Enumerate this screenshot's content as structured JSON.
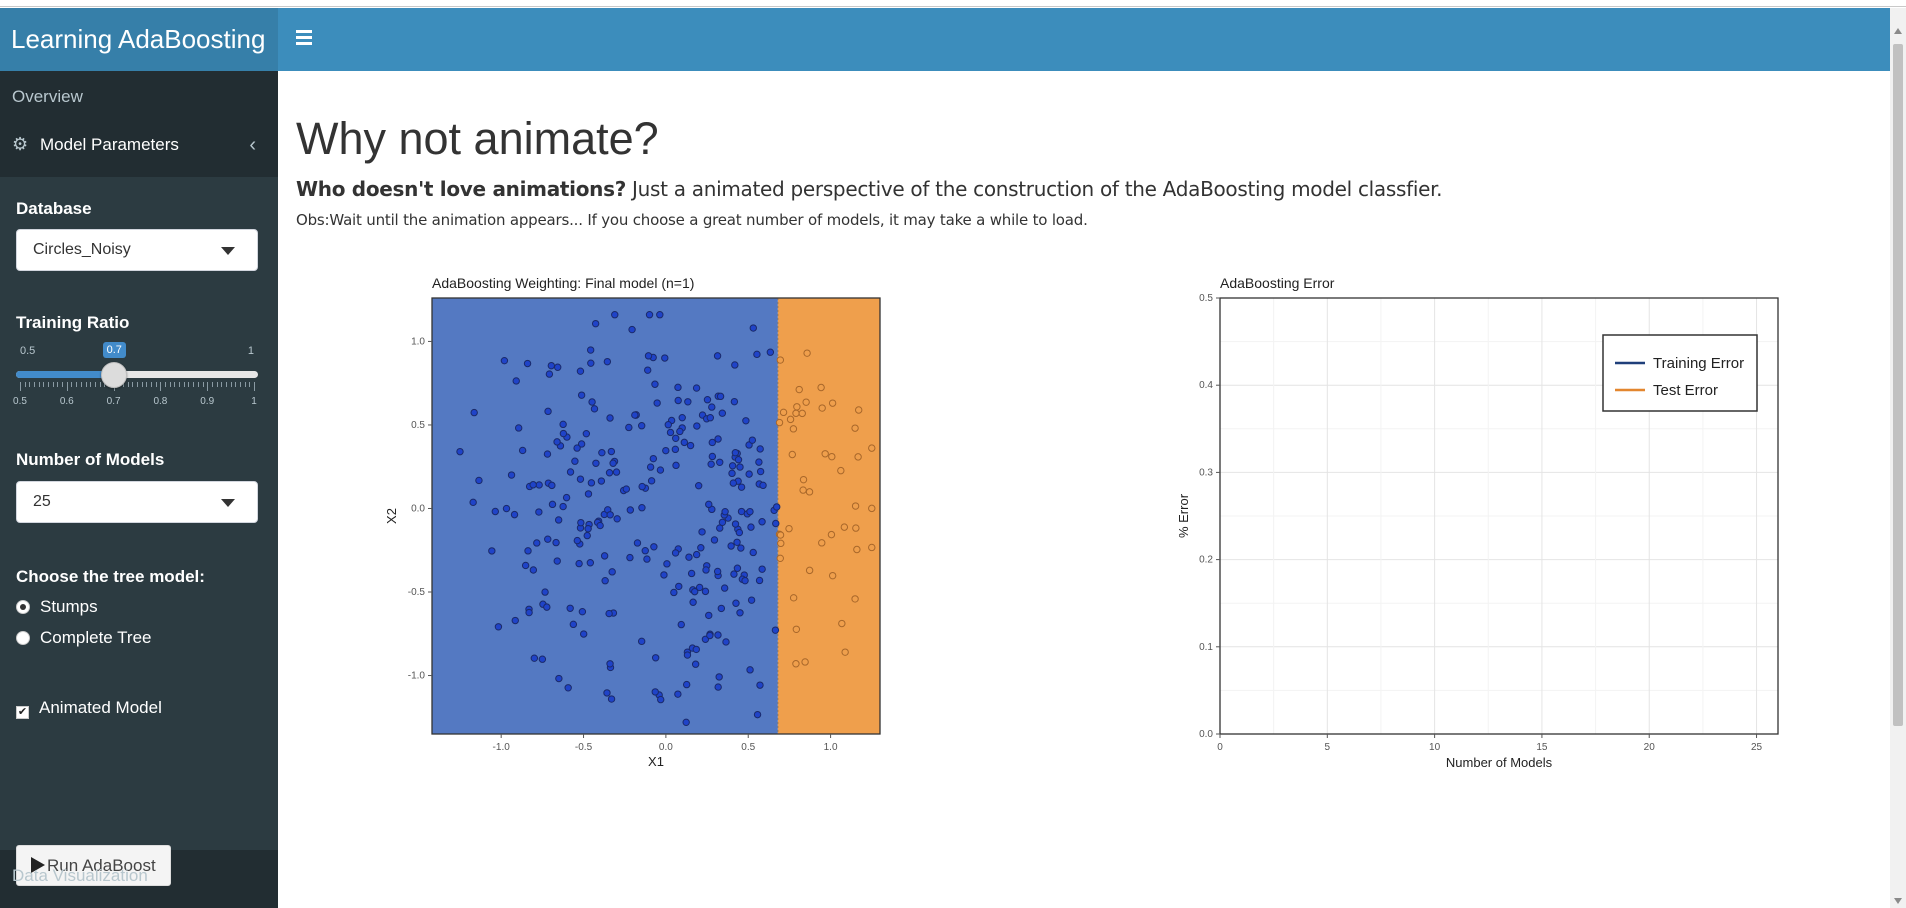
{
  "header": {
    "brand": "Learning AdaBoosting"
  },
  "sidebar": {
    "overview": "Overview",
    "model_parameters": "Model Parameters",
    "data_visualization": "Data Visualization",
    "database": {
      "label": "Database",
      "value": "Circles_Noisy"
    },
    "training_ratio": {
      "label": "Training Ratio",
      "min": "0.5",
      "max": "1",
      "value": "0.7",
      "fraction": 0.4,
      "tick_labels": [
        "0.5",
        "0.6",
        "0.7",
        "0.8",
        "0.9",
        "1"
      ]
    },
    "number_of_models": {
      "label": "Number of Models",
      "value": "25"
    },
    "tree_model": {
      "label": "Choose the tree model:",
      "options": [
        "Stumps",
        "Complete Tree"
      ],
      "selected": "Stumps"
    },
    "animated": {
      "label": "Animated Model",
      "checked": true
    },
    "run_button": "Run AdaBoost"
  },
  "main": {
    "title": "Why not animate?",
    "subtitle_bold": "Who doesn't love animations?",
    "subtitle_rest": " Just a animated perspective of the construction of the AdaBoosting model classfier.",
    "obs": "Obs:Wait until the animation appears... If you choose a great number of models, it may take a while to load."
  },
  "colors": {
    "class_a": "#5479c2",
    "class_b": "#ef9f4c",
    "point_a": "#1f43c8",
    "point_b": "#ef9f4c",
    "training_line": "#1f3f7a",
    "test_line": "#e3862e"
  },
  "chart_data": [
    {
      "type": "scatter",
      "title": "AdaBoosting Weighting: Final model (n=1)",
      "xlabel": "X1",
      "ylabel": "X2",
      "xlim": [
        -1.42,
        1.3
      ],
      "ylim": [
        -1.35,
        1.26
      ],
      "xticks": [
        "-1.0",
        "-0.5",
        "0.0",
        "0.5",
        "1.0"
      ],
      "yticks": [
        "-1.0",
        "-0.5",
        "0.0",
        "0.5",
        "1.0"
      ],
      "decision_boundary_x": 0.68,
      "points_count": 320,
      "series": [
        {
          "name": "",
          "class": "left",
          "count": 275
        },
        {
          "name": "",
          "class": "right",
          "count": 45
        }
      ]
    },
    {
      "type": "line",
      "title": "AdaBoosting Error",
      "xlabel": "Number of Models",
      "ylabel": "% Error",
      "xlim": [
        0,
        26
      ],
      "ylim": [
        0,
        0.5
      ],
      "xticks": [
        "0",
        "5",
        "10",
        "15",
        "20",
        "25"
      ],
      "yticks": [
        "0.0",
        "0.1",
        "0.2",
        "0.3",
        "0.4",
        "0.5"
      ],
      "legend_position": "top-right",
      "series": [
        {
          "name": "Training Error",
          "values": []
        },
        {
          "name": "Test Error",
          "values": []
        }
      ],
      "grid": true
    }
  ]
}
